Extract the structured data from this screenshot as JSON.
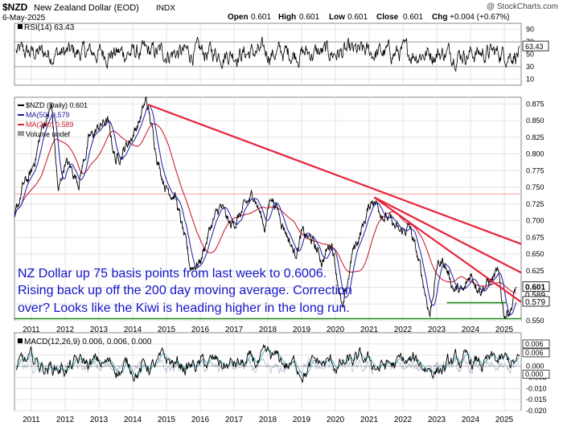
{
  "header": {
    "symbol": "$NZD",
    "name": "New Zealand Dollar (EOD)",
    "exchange": "INDX",
    "date": "6-May-2025",
    "brand": "@ StockCharts.com",
    "ohlc": {
      "open_label": "Open",
      "open": "0.601",
      "high_label": "High",
      "high": "0.601",
      "low_label": "Low",
      "low": "0.601",
      "close_label": "Close",
      "close": "0.601",
      "chg_label": "Chg",
      "chg": "+0.004 (+0.67%)"
    }
  },
  "colors": {
    "price": "#000000",
    "ma50": "#1a1aa6",
    "ma200": "#cc2233",
    "trend": "#e8223a",
    "support": "#1a8a1a",
    "annotation": "#1414c8",
    "macd_signal": "#2aa7b3"
  },
  "chart_data": [
    {
      "type": "line",
      "panel": "rsi",
      "legend": "RSI(14) 63.43",
      "ylim": [
        0,
        100
      ],
      "yticks": [
        90,
        70,
        50,
        30,
        10
      ],
      "current_label": "63.43",
      "current": 63.43,
      "reference_lines": [
        70,
        30
      ],
      "line_color": "#000000"
    },
    {
      "type": "line",
      "panel": "price",
      "legend": [
        "$NZD (Daily) 0.601",
        "MA(50) 0.579",
        "MA(200) 0.589",
        "Volume undef"
      ],
      "ylim": [
        0.55,
        0.885
      ],
      "yticks": [
        "0.875",
        "0.850",
        "0.825",
        "0.800",
        "0.775",
        "0.750",
        "0.725",
        "0.700",
        "0.675",
        "0.650",
        "0.625",
        "0.600",
        "0.575",
        "0.550"
      ],
      "xticks": [
        "2011",
        "2012",
        "2013",
        "2014",
        "2015",
        "2016",
        "2017",
        "2018",
        "2019",
        "2020",
        "2021",
        "2022",
        "2023",
        "2024",
        "2025"
      ],
      "x_range": [
        2010.5,
        2025.5
      ],
      "price_keypoints": [
        [
          2010.5,
          0.7
        ],
        [
          2010.75,
          0.75
        ],
        [
          2011.0,
          0.77
        ],
        [
          2011.33,
          0.84
        ],
        [
          2011.6,
          0.87
        ],
        [
          2011.8,
          0.74
        ],
        [
          2012.0,
          0.79
        ],
        [
          2012.4,
          0.76
        ],
        [
          2012.7,
          0.82
        ],
        [
          2013.0,
          0.84
        ],
        [
          2013.25,
          0.85
        ],
        [
          2013.5,
          0.79
        ],
        [
          2013.9,
          0.82
        ],
        [
          2014.2,
          0.85
        ],
        [
          2014.4,
          0.88
        ],
        [
          2014.6,
          0.83
        ],
        [
          2014.8,
          0.78
        ],
        [
          2015.0,
          0.75
        ],
        [
          2015.25,
          0.74
        ],
        [
          2015.5,
          0.68
        ],
        [
          2015.7,
          0.63
        ],
        [
          2016.0,
          0.64
        ],
        [
          2016.3,
          0.69
        ],
        [
          2016.6,
          0.72
        ],
        [
          2016.9,
          0.69
        ],
        [
          2017.2,
          0.71
        ],
        [
          2017.6,
          0.74
        ],
        [
          2017.9,
          0.69
        ],
        [
          2018.1,
          0.74
        ],
        [
          2018.5,
          0.69
        ],
        [
          2018.8,
          0.65
        ],
        [
          2019.0,
          0.68
        ],
        [
          2019.3,
          0.67
        ],
        [
          2019.6,
          0.64
        ],
        [
          2019.9,
          0.67
        ],
        [
          2020.22,
          0.56
        ],
        [
          2020.5,
          0.65
        ],
        [
          2020.8,
          0.69
        ],
        [
          2021.1,
          0.735
        ],
        [
          2021.3,
          0.72
        ],
        [
          2021.6,
          0.7
        ],
        [
          2021.9,
          0.68
        ],
        [
          2022.2,
          0.69
        ],
        [
          2022.5,
          0.63
        ],
        [
          2022.8,
          0.56
        ],
        [
          2023.0,
          0.63
        ],
        [
          2023.2,
          0.64
        ],
        [
          2023.5,
          0.6
        ],
        [
          2023.8,
          0.59
        ],
        [
          2024.0,
          0.62
        ],
        [
          2024.3,
          0.6
        ],
        [
          2024.6,
          0.61
        ],
        [
          2024.8,
          0.62
        ],
        [
          2025.0,
          0.56
        ],
        [
          2025.2,
          0.57
        ],
        [
          2025.35,
          0.601
        ]
      ],
      "trendlines": [
        [
          [
            2014.45,
            0.874
          ],
          [
            2025.5,
            0.665
          ]
        ],
        [
          [
            2021.15,
            0.735
          ],
          [
            2025.5,
            0.622
          ]
        ],
        [
          [
            2021.15,
            0.735
          ],
          [
            2025.5,
            0.578
          ]
        ]
      ],
      "hlines": [
        {
          "y": 0.74,
          "color": "#f0a0a0"
        },
        {
          "y": 0.553,
          "color": "#1a8a1a"
        }
      ],
      "support_segment": [
        [
          2023.3,
          0.577
        ],
        [
          2025.05,
          0.577
        ]
      ],
      "price_tags": [
        {
          "value": 0.601,
          "label": "0.601",
          "style": "bold"
        },
        {
          "value": 0.589,
          "label": "0.589",
          "style": "normal"
        },
        {
          "value": 0.579,
          "label": "0.579",
          "style": "boxed"
        }
      ],
      "annotation": [
        "NZ Dollar up 75 basis points from last week to 0.6006.",
        "Rising back up off the 200 day moving average. Correction",
        "over? Looks like the Kiwi is heading higher in the long run."
      ]
    },
    {
      "type": "line",
      "panel": "macd",
      "legend": "MACD(12,26,9) 0.006, 0.006, 0.000",
      "ylim": [
        -0.02,
        0.015
      ],
      "yticks": [
        "0.010",
        "0.005",
        "0.000",
        "-0.005",
        "-0.010",
        "-0.015",
        "-0.020"
      ],
      "current_tags": [
        "0.006",
        "0.006",
        "0.000"
      ],
      "xticks": [
        "2011",
        "2012",
        "2013",
        "2014",
        "2015",
        "2016",
        "2017",
        "2018",
        "2019",
        "2020",
        "2021",
        "2022",
        "2023",
        "2024",
        "2025"
      ]
    }
  ]
}
